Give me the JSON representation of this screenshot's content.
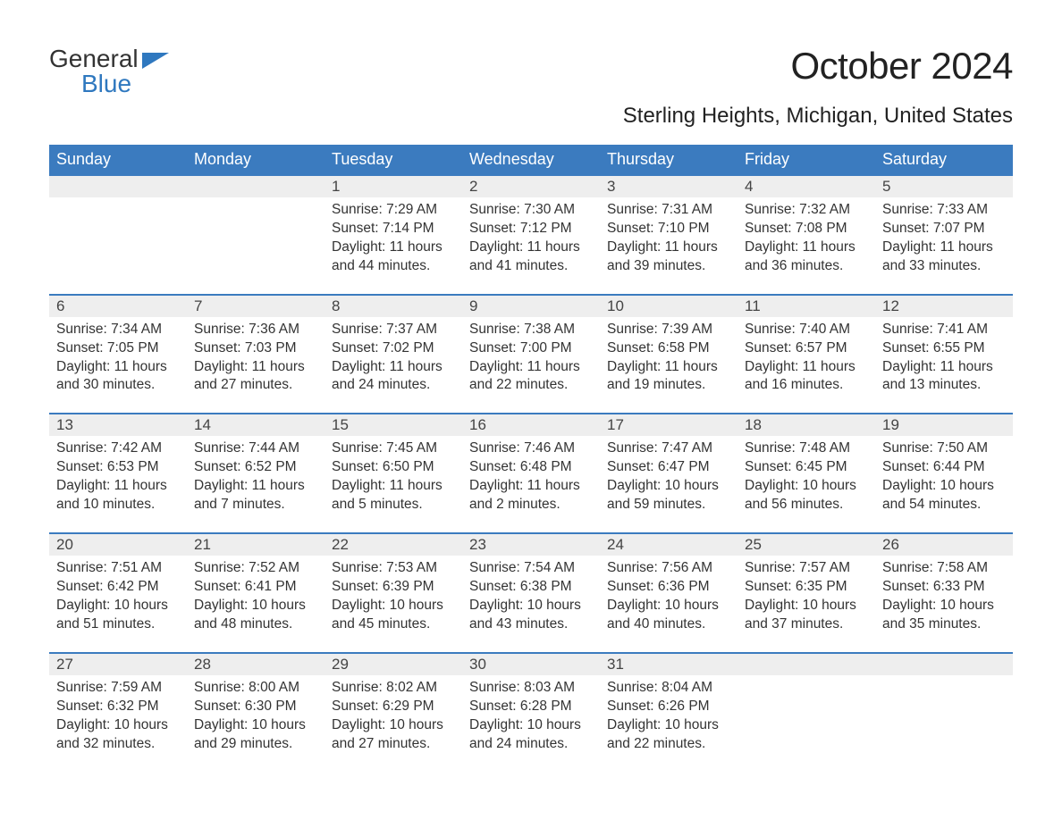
{
  "logo": {
    "text1": "General",
    "text2": "Blue",
    "flag_color": "#2f78bf",
    "text1_color": "#333333",
    "text2_color": "#2f78bf"
  },
  "title": "October 2024",
  "location": "Sterling Heights, Michigan, United States",
  "colors": {
    "header_bg": "#3b7bbf",
    "header_text": "#ffffff",
    "daynum_bg": "#eeeeee",
    "daynum_border": "#3b7bbf",
    "body_text": "#333333",
    "page_bg": "#ffffff"
  },
  "fonts": {
    "title_size": 42,
    "location_size": 24,
    "header_size": 18,
    "daynum_size": 17,
    "cell_size": 15.5
  },
  "type": "calendar-table",
  "columns": [
    "Sunday",
    "Monday",
    "Tuesday",
    "Wednesday",
    "Thursday",
    "Friday",
    "Saturday"
  ],
  "weeks": [
    [
      null,
      null,
      {
        "n": "1",
        "sunrise": "7:29 AM",
        "sunset": "7:14 PM",
        "dl_h": "11",
        "dl_m": "44"
      },
      {
        "n": "2",
        "sunrise": "7:30 AM",
        "sunset": "7:12 PM",
        "dl_h": "11",
        "dl_m": "41"
      },
      {
        "n": "3",
        "sunrise": "7:31 AM",
        "sunset": "7:10 PM",
        "dl_h": "11",
        "dl_m": "39"
      },
      {
        "n": "4",
        "sunrise": "7:32 AM",
        "sunset": "7:08 PM",
        "dl_h": "11",
        "dl_m": "36"
      },
      {
        "n": "5",
        "sunrise": "7:33 AM",
        "sunset": "7:07 PM",
        "dl_h": "11",
        "dl_m": "33"
      }
    ],
    [
      {
        "n": "6",
        "sunrise": "7:34 AM",
        "sunset": "7:05 PM",
        "dl_h": "11",
        "dl_m": "30"
      },
      {
        "n": "7",
        "sunrise": "7:36 AM",
        "sunset": "7:03 PM",
        "dl_h": "11",
        "dl_m": "27"
      },
      {
        "n": "8",
        "sunrise": "7:37 AM",
        "sunset": "7:02 PM",
        "dl_h": "11",
        "dl_m": "24"
      },
      {
        "n": "9",
        "sunrise": "7:38 AM",
        "sunset": "7:00 PM",
        "dl_h": "11",
        "dl_m": "22"
      },
      {
        "n": "10",
        "sunrise": "7:39 AM",
        "sunset": "6:58 PM",
        "dl_h": "11",
        "dl_m": "19"
      },
      {
        "n": "11",
        "sunrise": "7:40 AM",
        "sunset": "6:57 PM",
        "dl_h": "11",
        "dl_m": "16"
      },
      {
        "n": "12",
        "sunrise": "7:41 AM",
        "sunset": "6:55 PM",
        "dl_h": "11",
        "dl_m": "13"
      }
    ],
    [
      {
        "n": "13",
        "sunrise": "7:42 AM",
        "sunset": "6:53 PM",
        "dl_h": "11",
        "dl_m": "10"
      },
      {
        "n": "14",
        "sunrise": "7:44 AM",
        "sunset": "6:52 PM",
        "dl_h": "11",
        "dl_m": "7"
      },
      {
        "n": "15",
        "sunrise": "7:45 AM",
        "sunset": "6:50 PM",
        "dl_h": "11",
        "dl_m": "5"
      },
      {
        "n": "16",
        "sunrise": "7:46 AM",
        "sunset": "6:48 PM",
        "dl_h": "11",
        "dl_m": "2"
      },
      {
        "n": "17",
        "sunrise": "7:47 AM",
        "sunset": "6:47 PM",
        "dl_h": "10",
        "dl_m": "59"
      },
      {
        "n": "18",
        "sunrise": "7:48 AM",
        "sunset": "6:45 PM",
        "dl_h": "10",
        "dl_m": "56"
      },
      {
        "n": "19",
        "sunrise": "7:50 AM",
        "sunset": "6:44 PM",
        "dl_h": "10",
        "dl_m": "54"
      }
    ],
    [
      {
        "n": "20",
        "sunrise": "7:51 AM",
        "sunset": "6:42 PM",
        "dl_h": "10",
        "dl_m": "51"
      },
      {
        "n": "21",
        "sunrise": "7:52 AM",
        "sunset": "6:41 PM",
        "dl_h": "10",
        "dl_m": "48"
      },
      {
        "n": "22",
        "sunrise": "7:53 AM",
        "sunset": "6:39 PM",
        "dl_h": "10",
        "dl_m": "45"
      },
      {
        "n": "23",
        "sunrise": "7:54 AM",
        "sunset": "6:38 PM",
        "dl_h": "10",
        "dl_m": "43"
      },
      {
        "n": "24",
        "sunrise": "7:56 AM",
        "sunset": "6:36 PM",
        "dl_h": "10",
        "dl_m": "40"
      },
      {
        "n": "25",
        "sunrise": "7:57 AM",
        "sunset": "6:35 PM",
        "dl_h": "10",
        "dl_m": "37"
      },
      {
        "n": "26",
        "sunrise": "7:58 AM",
        "sunset": "6:33 PM",
        "dl_h": "10",
        "dl_m": "35"
      }
    ],
    [
      {
        "n": "27",
        "sunrise": "7:59 AM",
        "sunset": "6:32 PM",
        "dl_h": "10",
        "dl_m": "32"
      },
      {
        "n": "28",
        "sunrise": "8:00 AM",
        "sunset": "6:30 PM",
        "dl_h": "10",
        "dl_m": "29"
      },
      {
        "n": "29",
        "sunrise": "8:02 AM",
        "sunset": "6:29 PM",
        "dl_h": "10",
        "dl_m": "27"
      },
      {
        "n": "30",
        "sunrise": "8:03 AM",
        "sunset": "6:28 PM",
        "dl_h": "10",
        "dl_m": "24"
      },
      {
        "n": "31",
        "sunrise": "8:04 AM",
        "sunset": "6:26 PM",
        "dl_h": "10",
        "dl_m": "22"
      },
      null,
      null
    ]
  ],
  "labels": {
    "sunrise": "Sunrise: ",
    "sunset": "Sunset: ",
    "daylight1": "Daylight: ",
    "daylight2": " hours and ",
    "daylight3": " minutes."
  }
}
